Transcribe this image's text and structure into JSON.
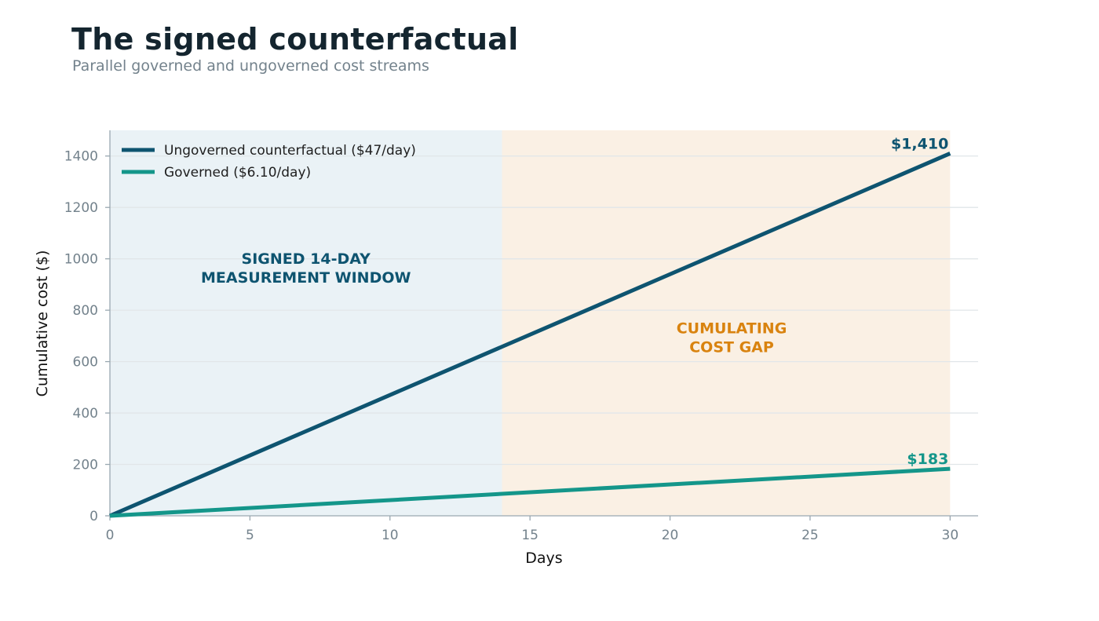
{
  "header": {
    "title": "The signed counterfactual",
    "subtitle": "Parallel governed and ungoverned cost streams"
  },
  "chart_data": {
    "type": "line",
    "xlabel": "Days",
    "ylabel": "Cumulative cost ($)",
    "xlim": [
      0,
      31
    ],
    "ylim": [
      0,
      1500
    ],
    "xticks": [
      0,
      5,
      10,
      15,
      20,
      25,
      30
    ],
    "yticks": [
      0,
      200,
      400,
      600,
      800,
      1000,
      1200,
      1400
    ],
    "grid": "horizontal",
    "legend_position": "top-left",
    "series": [
      {
        "name": "Ungoverned counterfactual ($47/day)",
        "color": "#0e5470",
        "x": [
          0,
          30
        ],
        "y": [
          0,
          1410
        ],
        "end_label": "$1,410"
      },
      {
        "name": "Governed ($6.10/day)",
        "color": "#14968a",
        "x": [
          0,
          30
        ],
        "y": [
          0,
          183
        ],
        "end_label": "$183"
      }
    ],
    "regions": [
      {
        "x": [
          0,
          14
        ],
        "color": "#eaf2f6",
        "label_lines": [
          "SIGNED 14-DAY",
          "MEASUREMENT WINDOW"
        ],
        "label_color": "#0e5470",
        "label_pos": [
          7,
          980
        ]
      },
      {
        "x": [
          14,
          30
        ],
        "color": "#faf0e4",
        "label_lines": [
          "CUMULATING",
          "COST GAP"
        ],
        "label_color": "#d9830f",
        "label_pos": [
          22.2,
          710
        ]
      }
    ]
  }
}
